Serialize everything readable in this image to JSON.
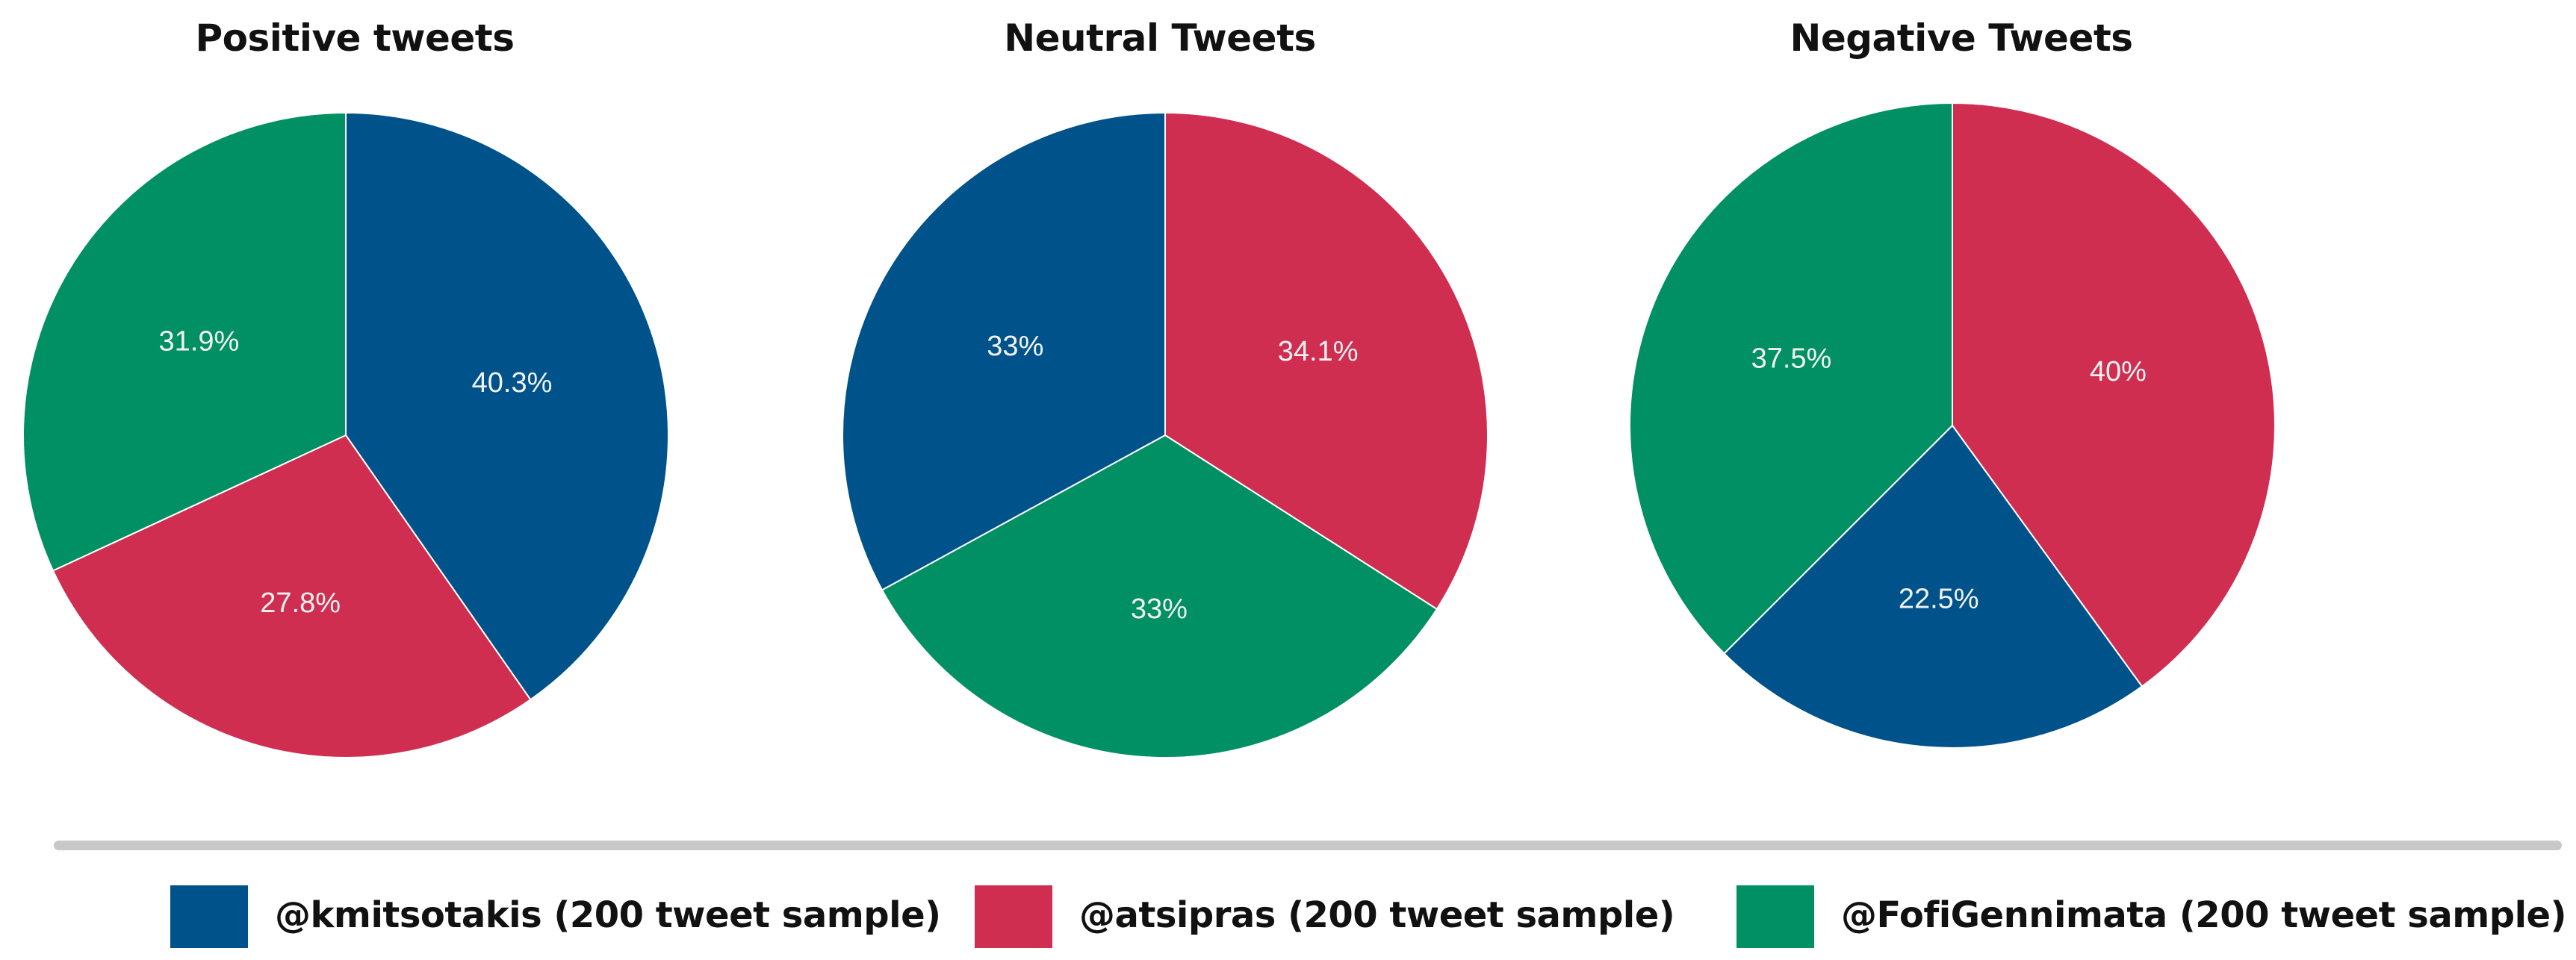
{
  "chart_data": [
    {
      "type": "pie",
      "title": "Positive tweets",
      "slices": [
        {
          "series": "@kmitsotakis (200 tweet sample)",
          "value": 40.3,
          "label": "40.3%",
          "color": "#00538a"
        },
        {
          "series": "@atsipras (200 tweet sample)",
          "value": 27.8,
          "label": "27.8%",
          "color": "#cf2e51"
        },
        {
          "series": "@FofiGennimata (200 tweet sample)",
          "value": 31.9,
          "label": "31.9%",
          "color": "#009063"
        }
      ]
    },
    {
      "type": "pie",
      "title": "Neutral Tweets",
      "slices": [
        {
          "series": "@atsipras (200 tweet sample)",
          "value": 34.1,
          "label": "34.1%",
          "color": "#cf2e51"
        },
        {
          "series": "@FofiGennimata (200 tweet sample)",
          "value": 33,
          "label": "33%",
          "color": "#009063"
        },
        {
          "series": "@kmitsotakis (200 tweet sample)",
          "value": 33,
          "label": "33%",
          "color": "#00538a"
        }
      ]
    },
    {
      "type": "pie",
      "title": "Negative Tweets",
      "slices": [
        {
          "series": "@atsipras (200 tweet sample)",
          "value": 40,
          "label": "40%",
          "color": "#cf2e51"
        },
        {
          "series": "@kmitsotakis (200 tweet sample)",
          "value": 22.5,
          "label": "22.5%",
          "color": "#00538a"
        },
        {
          "series": "@FofiGennimata (200 tweet sample)",
          "value": 37.5,
          "label": "37.5%",
          "color": "#009063"
        }
      ]
    }
  ],
  "legend": {
    "placement": "bottom",
    "items": [
      {
        "label": "@kmitsotakis (200 tweet sample)",
        "color": "#00538a"
      },
      {
        "label": "@atsipras (200 tweet sample)",
        "color": "#cf2e51"
      },
      {
        "label": "@FofiGennimata (200 tweet sample)",
        "color": "#009063"
      }
    ]
  }
}
